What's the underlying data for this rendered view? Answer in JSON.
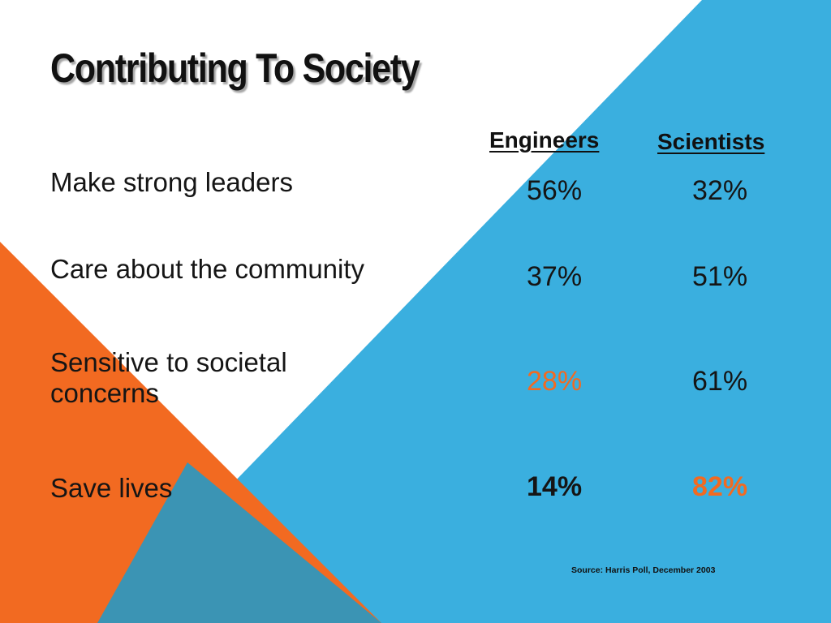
{
  "slide": {
    "title": "Contributing To Society",
    "columns": [
      "Engineers",
      "Scientists"
    ],
    "rows": [
      {
        "label": "Make strong leaders",
        "engineers": "56%",
        "scientists": "32%"
      },
      {
        "label": "Care about the community",
        "engineers": "37%",
        "scientists": "51%"
      },
      {
        "label_line1": "Sensitive to societal",
        "label_line2": "concerns",
        "engineers": "28%",
        "scientists": "61%"
      },
      {
        "label": "Save lives",
        "engineers": "14%",
        "scientists": "82%"
      }
    ],
    "source": "Source: Harris Poll, December 2003"
  },
  "colors": {
    "background": "#ffffff",
    "blue_band": "#3aafdf",
    "orange_band": "#f26a21",
    "overlap": "#3b94b4",
    "highlight": "#f26a21",
    "text": "#151515"
  }
}
